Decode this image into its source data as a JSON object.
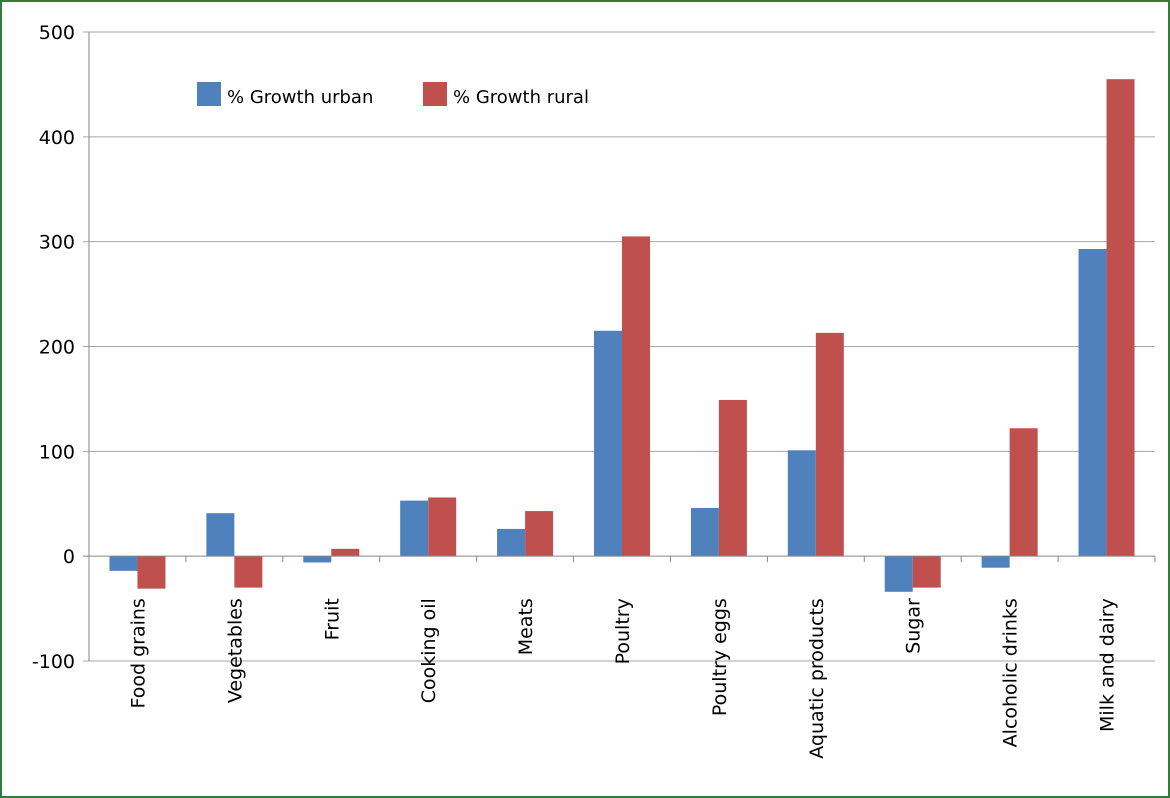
{
  "chart_data": {
    "type": "bar",
    "title": "",
    "xlabel": "",
    "ylabel": "",
    "categories": [
      "Food grains",
      "Vegetables",
      "Fruit",
      "Cooking oil",
      "Meats",
      "Poultry",
      "Poultry eggs",
      "Aquatic products",
      "Sugar",
      "Alcoholic drinks",
      "Milk and dairy"
    ],
    "series": [
      {
        "name": "% Growth urban",
        "color": "#4f81bd",
        "values": [
          -14,
          41,
          -6,
          53,
          26,
          215,
          46,
          101,
          -34,
          -11,
          293
        ]
      },
      {
        "name": "% Growth rural",
        "color": "#c0504d",
        "values": [
          -31,
          -30,
          7,
          56,
          43,
          305,
          149,
          213,
          -30,
          122,
          455
        ]
      }
    ],
    "ylim": [
      -100,
      500
    ],
    "yticks": [
      "-100",
      "0",
      "100",
      "200",
      "300",
      "400",
      "500"
    ],
    "grid": true,
    "legend_position": "top-left"
  }
}
